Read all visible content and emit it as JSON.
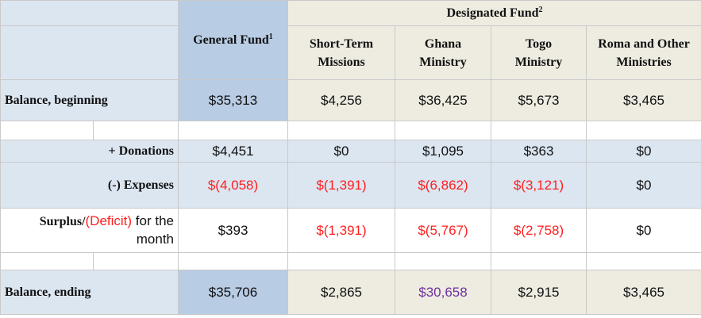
{
  "header": {
    "designated_fund": "Designated Fund",
    "designated_fund_note": "2",
    "general_fund": "General Fund",
    "general_fund_note": "1",
    "columns": [
      {
        "line1": "Short-Term",
        "line2": "Missions"
      },
      {
        "line1": "Ghana",
        "line2": "Ministry"
      },
      {
        "line1": "Togo",
        "line2": "Ministry"
      },
      {
        "line1": "Roma and Other",
        "line2": "Ministries"
      }
    ]
  },
  "rows": {
    "balance_beginning": {
      "label": "Balance, beginning",
      "values": [
        "$35,313",
        "$4,256",
        "$36,425",
        "$5,673",
        "$3,465"
      ]
    },
    "donations": {
      "prefix": "+ ",
      "label": "Donations",
      "values": [
        "$4,451",
        "$0",
        "$1,095",
        "$363",
        "$0"
      ]
    },
    "expenses": {
      "prefix": "(-) ",
      "label": "Expenses",
      "values": [
        "$(4,058)",
        "$(1,391)",
        "$(6,862)",
        "$(3,121)",
        "$0"
      ]
    },
    "surplus": {
      "label_part1": "Surplus/",
      "label_deficit": "(Deficit)",
      "label_part2": " for the",
      "label_line2": "month",
      "values": [
        "$393",
        "$(1,391)",
        "$(5,767)",
        "$(2,758)",
        "$0"
      ]
    },
    "balance_ending": {
      "label": "Balance, ending",
      "values": [
        "$35,706",
        "$2,865",
        "$30,658",
        "$2,915",
        "$3,465"
      ]
    }
  },
  "colors": {
    "negative": "#ff1f1f",
    "highlight": "#7030a0",
    "general_fund_bg": "#b8cce4",
    "designated_bg": "#eeece1",
    "band_bg": "#dce6f1"
  }
}
